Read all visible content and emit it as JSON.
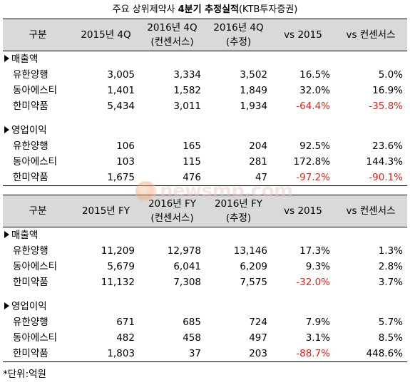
{
  "title_parts": [
    "주요 상위제약사 ",
    "4분기",
    " 추정실적",
    "(KTB투자증권)"
  ],
  "q_table": {
    "headers": [
      [
        "구분"
      ],
      [
        "2015년 4Q"
      ],
      [
        "2016년 4Q",
        "(컨센서스)"
      ],
      [
        "2016년 4Q",
        "(추정)"
      ],
      [
        "vs 2015"
      ],
      [
        "vs 컨센서스"
      ]
    ],
    "sections": [
      {
        "label": "매출액",
        "rows": [
          {
            "name": "유한양행",
            "values": [
              "3,005",
              "3,334",
              "3,502",
              "16.5%",
              "5.0%"
            ]
          },
          {
            "name": "동아에스티",
            "values": [
              "1,401",
              "1,582",
              "1,849",
              "32.0%",
              "16.9%"
            ]
          },
          {
            "name": "한미약품",
            "values": [
              "5,434",
              "3,011",
              "1,934",
              "-64.4%",
              "-35.8%"
            ]
          }
        ]
      },
      {
        "label": "영업이익",
        "rows": [
          {
            "name": "유한양행",
            "values": [
              "106",
              "165",
              "204",
              "92.5%",
              "23.6%"
            ]
          },
          {
            "name": "동아에스티",
            "values": [
              "103",
              "115",
              "281",
              "172.8%",
              "144.3%"
            ]
          },
          {
            "name": "한미약품",
            "values": [
              "1,675",
              "476",
              "47",
              "-97.2%",
              "-90.1%"
            ]
          }
        ]
      }
    ]
  },
  "fy_table": {
    "headers": [
      [
        "구분"
      ],
      [
        "2015년 FY"
      ],
      [
        "2016년 FY",
        "(컨센서스)"
      ],
      [
        "2016년 FY",
        "(추정)"
      ],
      [
        "vs 2015"
      ],
      [
        "vs 컨센서스"
      ]
    ],
    "sections": [
      {
        "label": "매출액",
        "rows": [
          {
            "name": "유한양행",
            "values": [
              "11,209",
              "12,978",
              "13,146",
              "17.3%",
              "1.3%"
            ]
          },
          {
            "name": "동아에스티",
            "values": [
              "5,679",
              "6,041",
              "6,209",
              "9.3%",
              "2.8%"
            ]
          },
          {
            "name": "한미약품",
            "values": [
              "11,132",
              "7,308",
              "7,575",
              "-32.0%",
              "3.7%"
            ]
          }
        ]
      },
      {
        "label": "영업이익",
        "rows": [
          {
            "name": "유한양행",
            "values": [
              "671",
              "685",
              "724",
              "7.9%",
              "5.7%"
            ]
          },
          {
            "name": "동아에스티",
            "values": [
              "482",
              "458",
              "497",
              "3.1%",
              "8.5%"
            ]
          },
          {
            "name": "한미약품",
            "values": [
              "1,803",
              "37",
              "203",
              "-88.7%",
              "448.6%"
            ]
          }
        ]
      }
    ]
  },
  "watermark": "newsmp.com",
  "footnote": "*단위:억원",
  "colors": {
    "negative": "#e0241b",
    "header_bg": "#d9d9d9"
  }
}
